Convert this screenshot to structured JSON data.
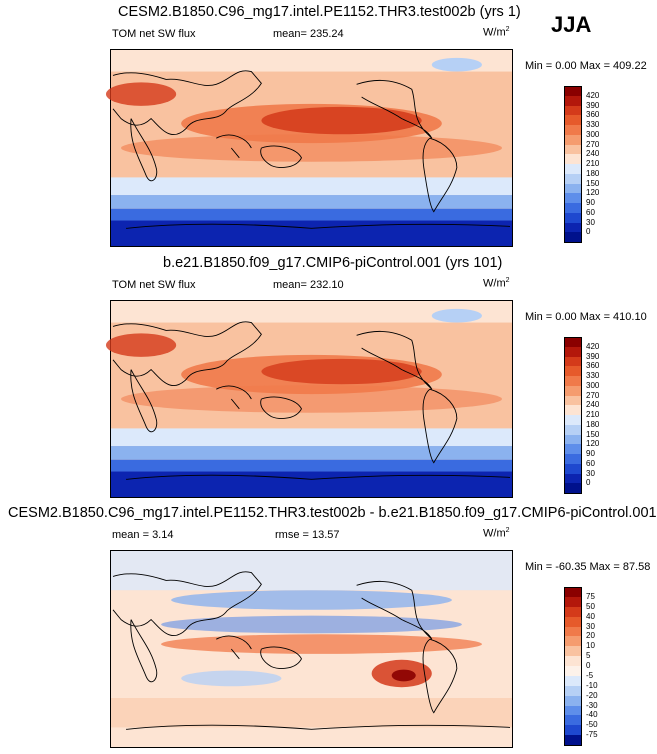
{
  "season": "JJA",
  "chart_data": [
    {
      "type": "heatmap",
      "title": "CESM2.B1850.C96_mg17.intel.PE1152.THR3.test002b (yrs 1)",
      "variable": "TOM net SW flux",
      "stat_label": "mean=",
      "stat_value": "235.24",
      "units": "W/m",
      "units_exp": "2",
      "minmax": "Min =   0.00 Max = 409.22",
      "levels": [
        "420",
        "390",
        "360",
        "330",
        "300",
        "270",
        "240",
        "210",
        "180",
        "150",
        "120",
        "90",
        "60",
        "30",
        "0"
      ],
      "colors": [
        "#8a0000",
        "#b3170b",
        "#d43a1a",
        "#e65a2b",
        "#f07a4a",
        "#f59c6f",
        "#f9c2a0",
        "#fde4d3",
        "#dce9fb",
        "#b6d0f5",
        "#8bb2ef",
        "#5e8eea",
        "#3a6be0",
        "#1e48cf",
        "#0c24b0",
        "#00118c"
      ]
    },
    {
      "type": "heatmap",
      "title": "b.e21.B1850.f09_g17.CMIP6-piControl.001 (yrs 101)",
      "variable": "TOM net SW flux",
      "stat_label": "mean=",
      "stat_value": "232.10",
      "units": "W/m",
      "units_exp": "2",
      "minmax": "Min =   0.00 Max = 410.10",
      "levels": [
        "420",
        "390",
        "360",
        "330",
        "300",
        "270",
        "240",
        "210",
        "180",
        "150",
        "120",
        "90",
        "60",
        "30",
        "0"
      ],
      "colors": [
        "#8a0000",
        "#b3170b",
        "#d43a1a",
        "#e65a2b",
        "#f07a4a",
        "#f59c6f",
        "#f9c2a0",
        "#fde4d3",
        "#dce9fb",
        "#b6d0f5",
        "#8bb2ef",
        "#5e8eea",
        "#3a6be0",
        "#1e48cf",
        "#0c24b0",
        "#00118c"
      ]
    },
    {
      "type": "heatmap",
      "title": "CESM2.B1850.C96_mg17.intel.PE1152.THR3.test002b - b.e21.B1850.f09_g17.CMIP6-piControl.001",
      "mean_label": "mean =",
      "mean_value": "3.14",
      "rmse_label": "rmse =",
      "rmse_value": "13.57",
      "units": "W/m",
      "units_exp": "2",
      "minmax": "Min = -60.35 Max =  87.58",
      "levels": [
        "75",
        "50",
        "40",
        "30",
        "20",
        "10",
        "5",
        "0",
        "-5",
        "-10",
        "-20",
        "-30",
        "-40",
        "-50",
        "-75"
      ],
      "colors": [
        "#8a0000",
        "#b3170b",
        "#d43a1a",
        "#e65a2b",
        "#f07a4a",
        "#f59c6f",
        "#f9c2a0",
        "#fde4d3",
        "#fdf2ea",
        "#dce9fb",
        "#b6d0f5",
        "#8bb2ef",
        "#5e8eea",
        "#3a6be0",
        "#1e48cf",
        "#00118c"
      ]
    }
  ]
}
